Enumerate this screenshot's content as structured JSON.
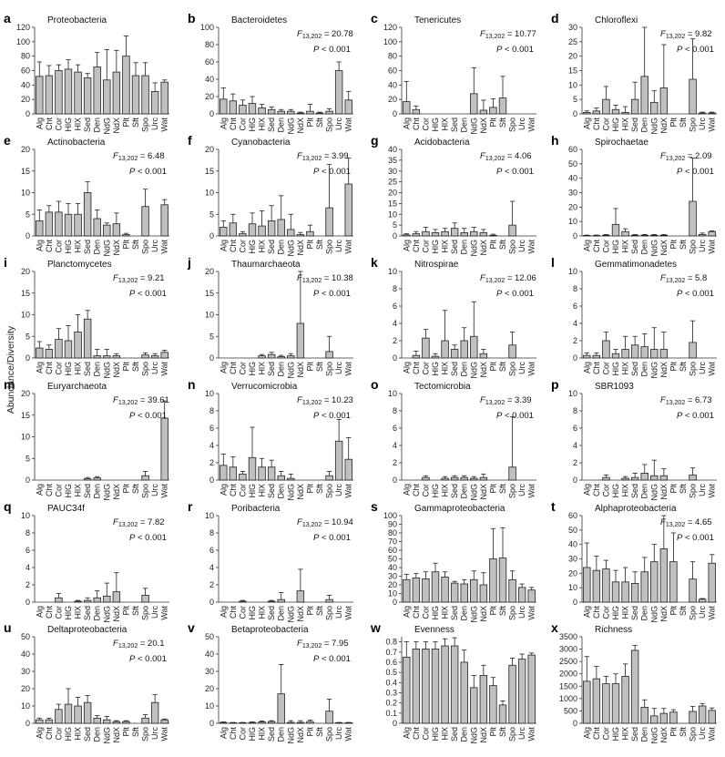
{
  "figure": {
    "ylabel": "Abundance/Diversity",
    "categories": [
      "Alg",
      "Cht",
      "Cor",
      "HlG",
      "HlX",
      "Sed",
      "Den",
      "NdG",
      "NdX",
      "Plt",
      "Sft",
      "Spo",
      "Urc",
      "Wat"
    ],
    "bar_color": "#c0c0c0",
    "stat_p": "< 0.001"
  },
  "chart_data": [
    {
      "type": "bar",
      "letter": "a",
      "title": "Proteobacteria",
      "ylim": [
        0,
        120
      ],
      "yticks": [
        0,
        20,
        40,
        60,
        80,
        100,
        120
      ],
      "stat_F": "",
      "values": [
        52,
        53,
        60,
        62,
        58,
        50,
        65,
        47,
        58,
        80,
        53,
        53,
        31,
        44
      ],
      "errors": [
        20,
        14,
        8,
        13,
        10,
        6,
        20,
        42,
        30,
        28,
        18,
        18,
        12,
        3
      ]
    },
    {
      "type": "bar",
      "letter": "b",
      "title": "Bacteroidetes",
      "ylim": [
        0,
        100
      ],
      "yticks": [
        0,
        20,
        40,
        60,
        80,
        100
      ],
      "stat_F": "20.78",
      "values": [
        17,
        15,
        10,
        12,
        7,
        5,
        3,
        3,
        1,
        3,
        1,
        3,
        50,
        16
      ],
      "errors": [
        13,
        8,
        6,
        8,
        4,
        3,
        2,
        2,
        1,
        8,
        1,
        3,
        10,
        10
      ]
    },
    {
      "type": "bar",
      "letter": "c",
      "title": "Tenericutes",
      "ylim": [
        0,
        120
      ],
      "yticks": [
        0,
        20,
        40,
        60,
        80,
        100,
        120
      ],
      "stat_F": "10.77",
      "values": [
        17,
        6,
        0,
        0,
        0,
        0,
        0,
        28,
        5,
        9,
        22,
        0,
        0,
        0
      ],
      "errors": [
        28,
        5,
        0,
        0,
        0,
        0,
        0,
        36,
        14,
        12,
        30,
        0,
        0,
        0
      ]
    },
    {
      "type": "bar",
      "letter": "d",
      "title": "Chloroflexi",
      "ylim": [
        0,
        30
      ],
      "yticks": [
        0,
        5,
        10,
        15,
        20,
        25,
        30
      ],
      "stat_F": "9.82",
      "values": [
        0.5,
        1,
        5,
        1.5,
        0.5,
        5,
        13,
        4,
        9,
        0,
        0,
        12,
        0.3,
        0.3
      ],
      "errors": [
        0.5,
        1,
        4.5,
        1.5,
        2,
        6,
        18,
        4,
        15,
        0,
        0,
        14,
        0.3,
        0.3
      ]
    },
    {
      "type": "bar",
      "letter": "e",
      "title": "Actinobacteria",
      "ylim": [
        0,
        20
      ],
      "yticks": [
        0,
        5,
        10,
        15,
        20
      ],
      "stat_F": "6.48",
      "values": [
        3.5,
        5.5,
        5.5,
        5,
        5,
        10,
        4,
        2.5,
        2.8,
        0.3,
        0,
        6.8,
        0,
        7.2
      ],
      "errors": [
        2.5,
        1.5,
        2.5,
        2.5,
        2.5,
        2.5,
        2,
        0.5,
        2.5,
        0.3,
        0,
        4,
        0,
        1.2
      ]
    },
    {
      "type": "bar",
      "letter": "f",
      "title": "Cyanobacteria",
      "ylim": [
        0,
        20
      ],
      "yticks": [
        0,
        5,
        10,
        15,
        20
      ],
      "stat_F": "3.99",
      "values": [
        2,
        3,
        0.5,
        2.8,
        2.3,
        3.5,
        3.8,
        1.5,
        0.3,
        1,
        0,
        6.5,
        0,
        12
      ],
      "errors": [
        1.5,
        2,
        0.5,
        2.5,
        3.5,
        3.5,
        5.5,
        3.5,
        0.5,
        1.5,
        0,
        10,
        0,
        6
      ]
    },
    {
      "type": "bar",
      "letter": "g",
      "title": "Acidobacteria",
      "ylim": [
        0,
        40
      ],
      "yticks": [
        0,
        5,
        10,
        15,
        20,
        25,
        30,
        35,
        40
      ],
      "stat_F": "4.06",
      "values": [
        0.5,
        1,
        2,
        1.5,
        2,
        3.5,
        1.5,
        2,
        1.5,
        0.3,
        0,
        5,
        0,
        0
      ],
      "errors": [
        0.5,
        1,
        2,
        1.5,
        1.5,
        2.5,
        2,
        2,
        1.5,
        0.5,
        0,
        11,
        0,
        0
      ]
    },
    {
      "type": "bar",
      "letter": "h",
      "title": "Spirochaetae",
      "ylim": [
        0,
        60
      ],
      "yticks": [
        0,
        10,
        20,
        30,
        40,
        50,
        60
      ],
      "stat_F": "2.09",
      "values": [
        0.3,
        0.3,
        0.5,
        8,
        3,
        0.5,
        0.5,
        0.5,
        0.5,
        0,
        0,
        24,
        1,
        3
      ],
      "errors": [
        0.3,
        0.3,
        0.5,
        11,
        2,
        0.5,
        0.5,
        0.5,
        0.5,
        0,
        0,
        30,
        1,
        0.5
      ]
    },
    {
      "type": "bar",
      "letter": "i",
      "title": "Planctomycetes",
      "ylim": [
        0,
        20
      ],
      "yticks": [
        0,
        5,
        10,
        15,
        20
      ],
      "stat_F": "9.21",
      "values": [
        2.3,
        2,
        4.3,
        4,
        6,
        9,
        0.5,
        0.5,
        0.5,
        0,
        0,
        0.7,
        0.5,
        1.3
      ],
      "errors": [
        1.5,
        1,
        2.5,
        3.5,
        4,
        2,
        1.5,
        1.5,
        0.5,
        0,
        0,
        0.5,
        0.5,
        0.5
      ]
    },
    {
      "type": "bar",
      "letter": "j",
      "title": "Thaumarchaeota",
      "ylim": [
        0,
        20
      ],
      "yticks": [
        0,
        5,
        10,
        15,
        20
      ],
      "stat_F": "10.38",
      "values": [
        0,
        0,
        0,
        0,
        0.5,
        0.8,
        0.3,
        0.5,
        8,
        0,
        0,
        1.5,
        0,
        0
      ],
      "errors": [
        0,
        0,
        0,
        0,
        0.3,
        0.5,
        0.3,
        0.5,
        14,
        0,
        0,
        3.5,
        0,
        0
      ]
    },
    {
      "type": "bar",
      "letter": "k",
      "title": "Nitrospirae",
      "ylim": [
        0,
        10
      ],
      "yticks": [
        0,
        2,
        4,
        6,
        8,
        10
      ],
      "stat_F": "12.06",
      "values": [
        0,
        0.3,
        2.3,
        0.2,
        2,
        1,
        2,
        2.5,
        0.5,
        0,
        0,
        1.5,
        0,
        0
      ],
      "errors": [
        0,
        0.5,
        1,
        0.3,
        3.5,
        0.5,
        1.5,
        4,
        0.5,
        0,
        0,
        1.5,
        0,
        0
      ]
    },
    {
      "type": "bar",
      "letter": "l",
      "title": "Gemmatimonadetes",
      "ylim": [
        0,
        10
      ],
      "yticks": [
        0,
        2,
        4,
        6,
        8,
        10
      ],
      "stat_F": "5.8",
      "values": [
        0.3,
        0.3,
        2,
        0.5,
        1,
        1.5,
        1.3,
        1,
        1,
        0,
        0,
        1.8,
        0,
        0
      ],
      "errors": [
        0.3,
        0.3,
        1,
        0.5,
        1.5,
        1,
        1.5,
        2.5,
        2,
        0,
        0,
        2.5,
        0,
        0
      ]
    },
    {
      "type": "bar",
      "letter": "m",
      "title": "Euryarchaeota",
      "ylim": [
        0,
        20
      ],
      "yticks": [
        0,
        5,
        10,
        15,
        20
      ],
      "stat_F": "39.61",
      "values": [
        0,
        0,
        0,
        0,
        0,
        0.3,
        0.5,
        0,
        0,
        0,
        0,
        1,
        0,
        14.3
      ],
      "errors": [
        0,
        0,
        0,
        0,
        0,
        0.3,
        0.3,
        0,
        0,
        0,
        0,
        1,
        0,
        4
      ]
    },
    {
      "type": "bar",
      "letter": "n",
      "title": "Verrucomicrobia",
      "ylim": [
        0,
        10
      ],
      "yticks": [
        0,
        2,
        4,
        6,
        8,
        10
      ],
      "stat_F": "10.23",
      "values": [
        1.7,
        1.5,
        0.7,
        2.6,
        1.5,
        1.5,
        0.5,
        0.2,
        0,
        0,
        0,
        0.5,
        4.5,
        2.4
      ],
      "errors": [
        1.3,
        1.2,
        0.3,
        3.5,
        1,
        0.8,
        0.5,
        0.5,
        0,
        0,
        0,
        0.5,
        2.5,
        2.5
      ]
    },
    {
      "type": "bar",
      "letter": "o",
      "title": "Tectomicrobia",
      "ylim": [
        0,
        10
      ],
      "yticks": [
        0,
        2,
        4,
        6,
        8,
        10
      ],
      "stat_F": "3.39",
      "values": [
        0,
        0,
        0.3,
        0,
        0.2,
        0.3,
        0.3,
        0.2,
        0.3,
        0,
        0,
        1.5,
        0,
        0
      ],
      "errors": [
        0,
        0,
        0.2,
        0,
        0.2,
        0.2,
        0.2,
        0.2,
        0.4,
        0,
        0,
        5.8,
        0,
        0
      ]
    },
    {
      "type": "bar",
      "letter": "p",
      "title": "SBR1093",
      "ylim": [
        0,
        10
      ],
      "yticks": [
        0,
        2,
        4,
        6,
        8,
        10
      ],
      "stat_F": "6.73",
      "values": [
        0,
        0,
        0.3,
        0,
        0.2,
        0.3,
        0.8,
        0.5,
        0.5,
        0,
        0,
        0.6,
        0,
        0
      ],
      "errors": [
        0,
        0,
        0.3,
        0,
        0.2,
        0.5,
        1,
        1.8,
        0.8,
        0,
        0,
        0.8,
        0,
        0
      ]
    },
    {
      "type": "bar",
      "letter": "q",
      "title": "PAUC34f",
      "ylim": [
        0,
        10
      ],
      "yticks": [
        0,
        2,
        4,
        6,
        8,
        10
      ],
      "stat_F": "7.82",
      "values": [
        0,
        0,
        0.5,
        0,
        0.1,
        0.2,
        0.5,
        0.7,
        1.2,
        0,
        0,
        0.8,
        0,
        0
      ],
      "errors": [
        0,
        0,
        0.5,
        0,
        0.1,
        0.3,
        0.8,
        1.5,
        2.2,
        0,
        0,
        0.8,
        0,
        0
      ]
    },
    {
      "type": "bar",
      "letter": "r",
      "title": "Poribacteria",
      "ylim": [
        0,
        10
      ],
      "yticks": [
        0,
        2,
        4,
        6,
        8,
        10
      ],
      "stat_F": "10.94",
      "values": [
        0,
        0,
        0.1,
        0,
        0,
        0.1,
        0.3,
        0,
        1.3,
        0,
        0,
        0.3,
        0,
        0
      ],
      "errors": [
        0,
        0,
        0.1,
        0,
        0,
        0.1,
        0.8,
        0,
        2.5,
        0,
        0,
        0.5,
        0,
        0
      ]
    },
    {
      "type": "bar",
      "letter": "s",
      "title": "Gammaproteobacteria",
      "ylim": [
        0,
        100
      ],
      "yticks": [
        0,
        10,
        20,
        30,
        40,
        50,
        60,
        70,
        80,
        90,
        100
      ],
      "stat_F": "",
      "values": [
        26,
        28,
        27,
        35,
        29,
        22,
        21,
        26,
        20,
        50,
        51,
        26,
        17,
        14
      ],
      "errors": [
        6,
        5,
        8,
        10,
        6,
        2,
        5,
        10,
        14,
        35,
        35,
        10,
        4,
        3
      ]
    },
    {
      "type": "bar",
      "letter": "t",
      "title": "Alphaproteobacteria",
      "ylim": [
        0,
        60
      ],
      "yticks": [
        0,
        10,
        20,
        30,
        40,
        50,
        60
      ],
      "stat_F": "4.65",
      "values": [
        24,
        22,
        23,
        14,
        14,
        13,
        21,
        28,
        37,
        28,
        0,
        16,
        2,
        27
      ],
      "errors": [
        17,
        10,
        6,
        8,
        10,
        8,
        10,
        12,
        27,
        20,
        0,
        12,
        0.5,
        6
      ]
    },
    {
      "type": "bar",
      "letter": "u",
      "title": "Deltaproteobacteria",
      "ylim": [
        0,
        50
      ],
      "yticks": [
        0,
        10,
        20,
        30,
        40,
        50
      ],
      "stat_F": "20.1",
      "values": [
        2,
        2,
        8,
        11,
        10,
        12,
        3,
        2,
        1,
        1,
        0,
        3,
        12,
        2
      ],
      "errors": [
        1,
        1,
        3,
        9,
        5,
        4,
        1.5,
        2,
        0.5,
        0.5,
        0,
        2,
        4.5,
        0.5
      ]
    },
    {
      "type": "bar",
      "letter": "v",
      "title": "Betaproteobacteria",
      "ylim": [
        0,
        50
      ],
      "yticks": [
        0,
        10,
        20,
        30,
        40,
        50
      ],
      "stat_F": "7.95",
      "values": [
        0.5,
        0.3,
        0.3,
        0.5,
        0.8,
        1,
        17,
        0.5,
        0.5,
        1,
        0,
        7,
        0.3,
        0.3
      ],
      "errors": [
        0.3,
        0.2,
        0.2,
        0.3,
        0.5,
        0.5,
        17,
        1,
        1,
        0.8,
        0,
        7,
        0.2,
        0.2
      ]
    },
    {
      "type": "bar",
      "letter": "w",
      "title": "Evenness",
      "ylim": [
        0,
        0.85
      ],
      "yticks": [
        0,
        0.1,
        0.2,
        0.3,
        0.4,
        0.5,
        0.6,
        0.7,
        0.8
      ],
      "stat_F": "",
      "values": [
        0.65,
        0.73,
        0.73,
        0.73,
        0.76,
        0.76,
        0.6,
        0.35,
        0.47,
        0.37,
        0.18,
        0.57,
        0.63,
        0.67
      ],
      "errors": [
        0.15,
        0.07,
        0.07,
        0.07,
        0.07,
        0.08,
        0.12,
        0.12,
        0.1,
        0.08,
        0.04,
        0.07,
        0.05,
        0.02
      ]
    },
    {
      "type": "bar",
      "letter": "x",
      "title": "Richness",
      "ylim": [
        0,
        3500
      ],
      "yticks": [
        0,
        500,
        1000,
        1500,
        2000,
        2500,
        3000,
        3500
      ],
      "stat_F": "",
      "values": [
        1700,
        1800,
        1600,
        1600,
        1900,
        2950,
        650,
        300,
        400,
        450,
        0,
        480,
        700,
        520
      ],
      "errors": [
        1000,
        500,
        300,
        400,
        500,
        200,
        300,
        300,
        200,
        100,
        0,
        200,
        100,
        100
      ]
    }
  ]
}
